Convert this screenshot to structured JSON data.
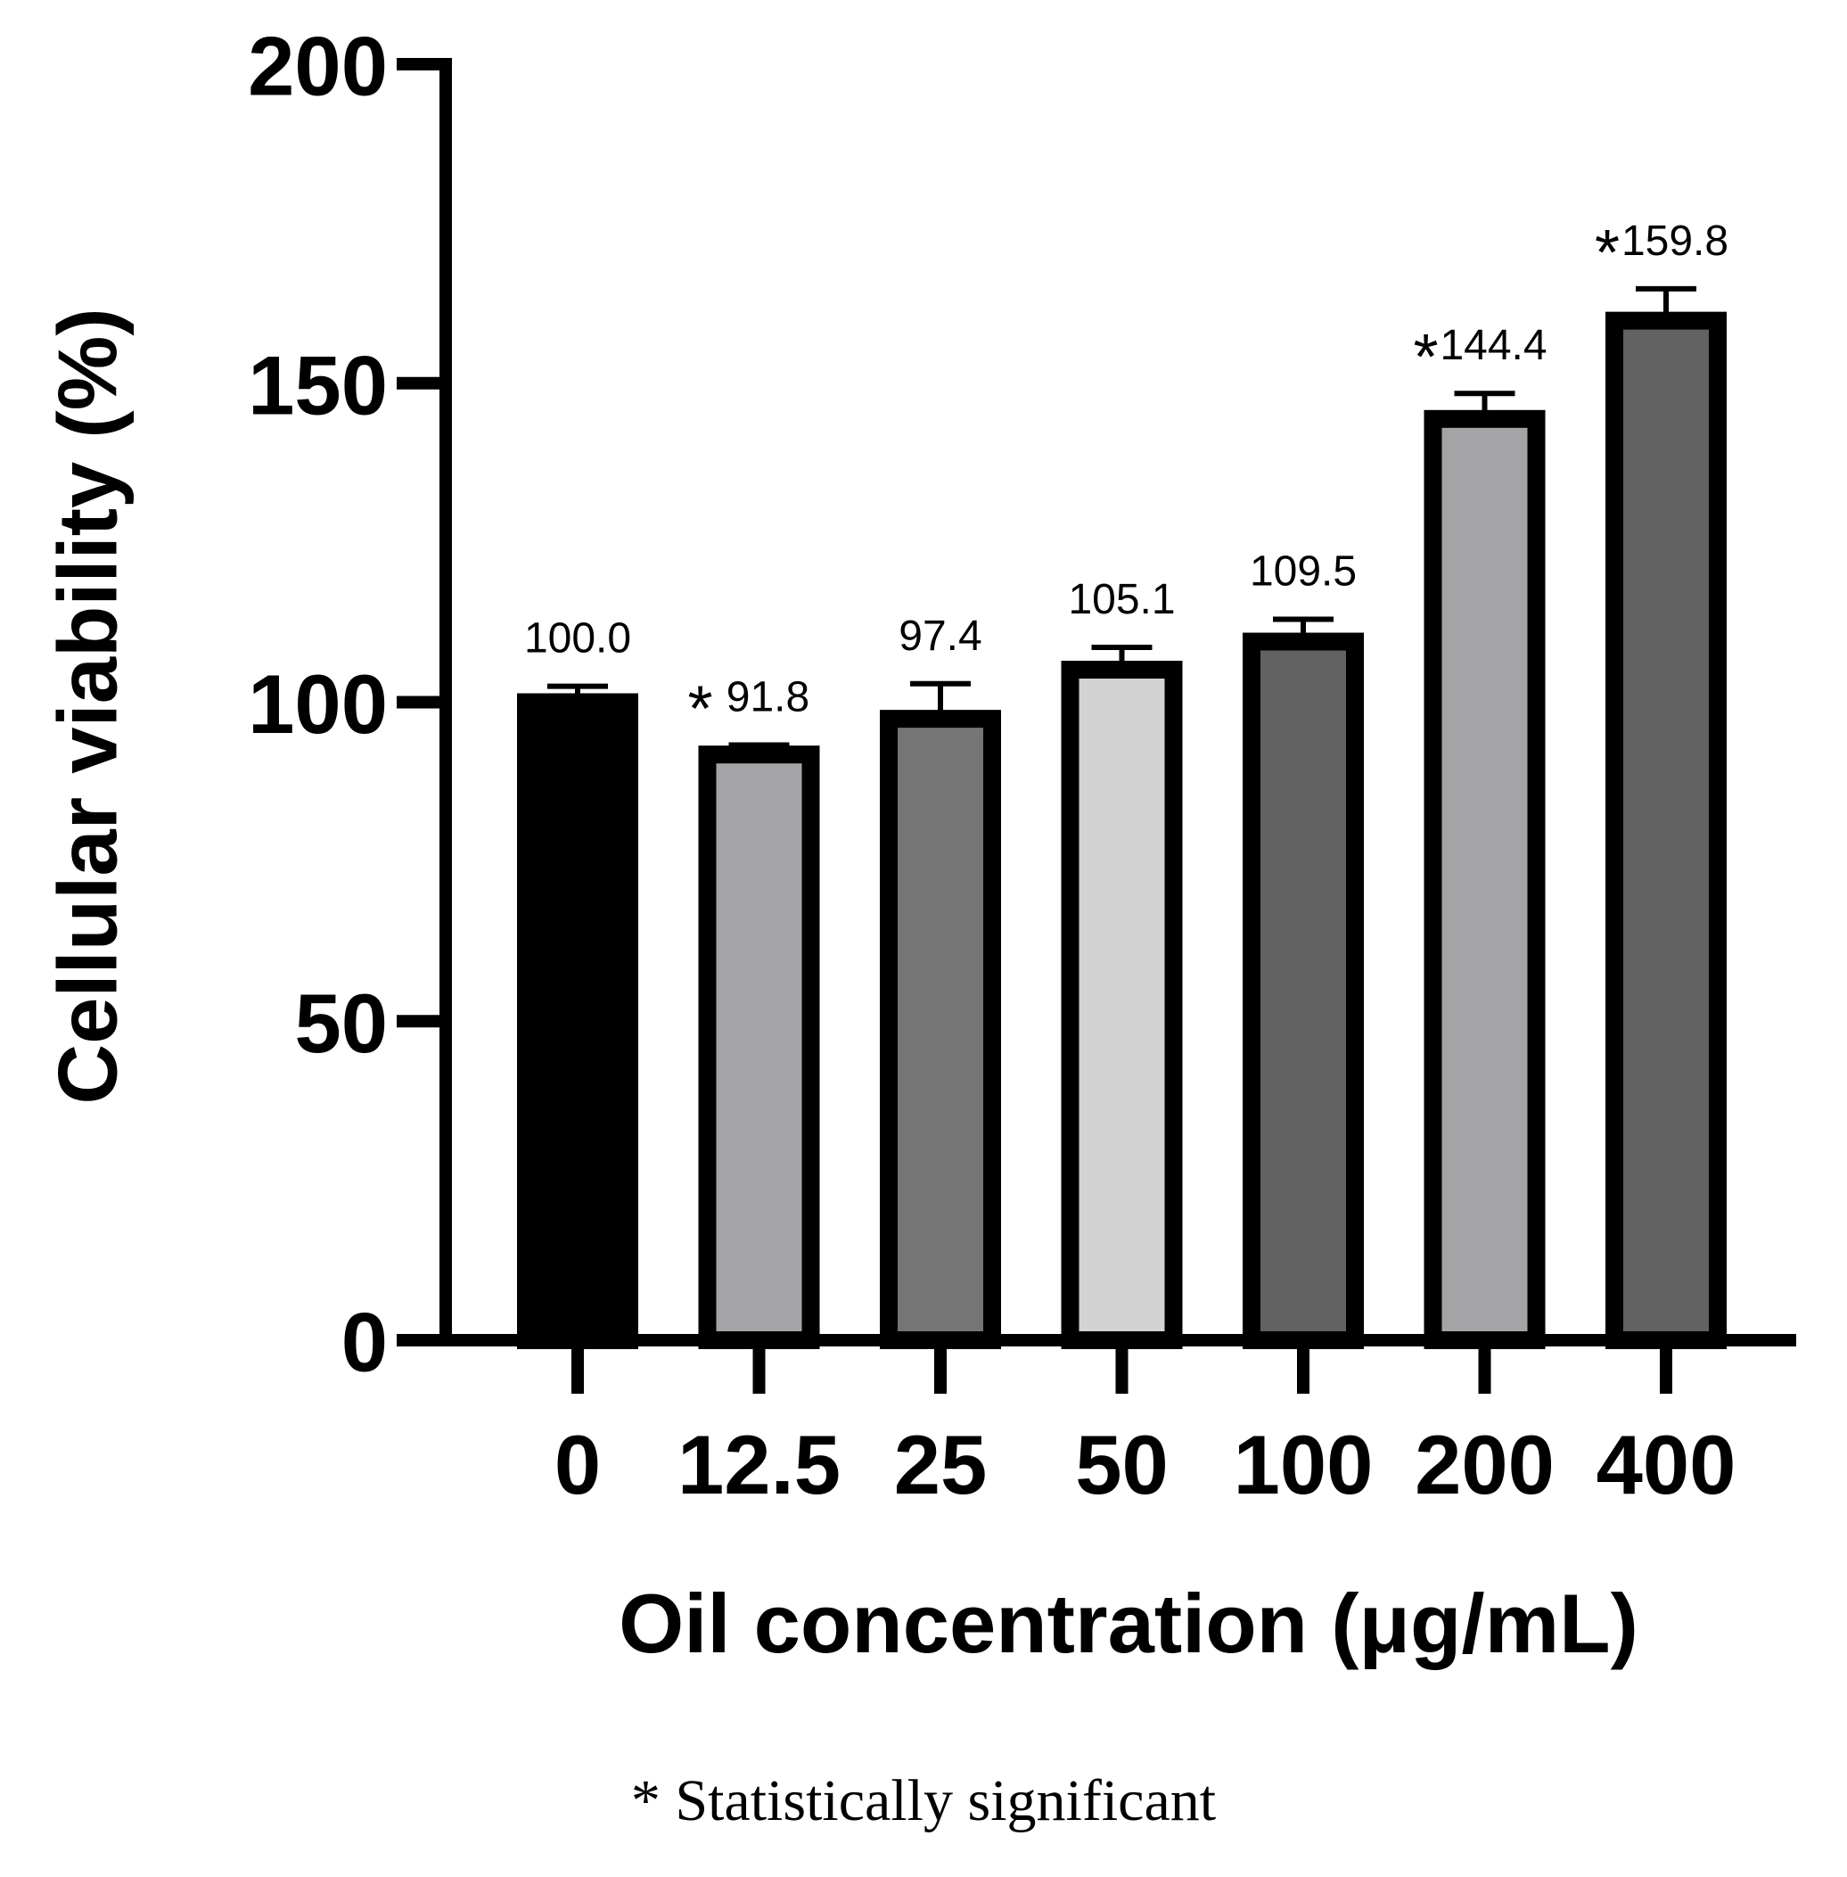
{
  "chart_data": {
    "type": "bar",
    "categories": [
      "0",
      "12.5",
      "25",
      "50",
      "100",
      "200",
      "400"
    ],
    "values": [
      100.0,
      91.8,
      97.4,
      105.1,
      109.5,
      144.4,
      159.8
    ],
    "value_labels": [
      "100.0",
      "91.8",
      "97.4",
      "105.1",
      "109.5",
      "144.4",
      "159.8"
    ],
    "errors": [
      2.5,
      1.5,
      5.5,
      3.5,
      3.5,
      4.0,
      5.0
    ],
    "significant": [
      false,
      true,
      false,
      false,
      false,
      true,
      true
    ],
    "bar_colors": [
      "#000000",
      "#a4a4a6",
      "#757575",
      "#d3d3d3",
      "#626262",
      "#a4a4a6",
      "#626262"
    ],
    "significance_marker": "*",
    "xlabel": "Oil concentration (μg/mL)",
    "ylabel": "Cellular  viability (%)",
    "ylim": [
      0,
      200
    ],
    "yticks": [
      "0",
      "50",
      "100",
      "150",
      "200"
    ],
    "grid": false
  },
  "footnote": "* Statistically significant"
}
